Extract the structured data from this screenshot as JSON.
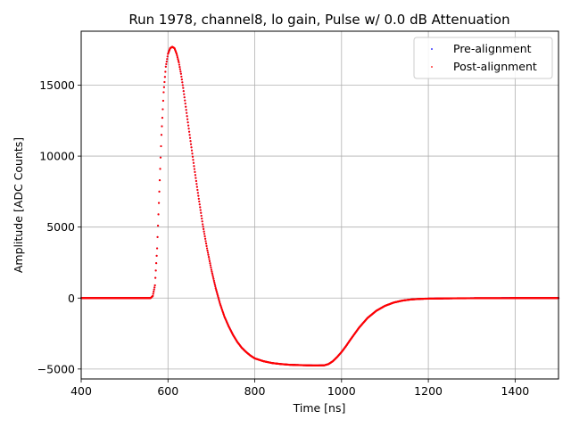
{
  "chart_data": {
    "type": "scatter",
    "title": "Run 1978, channel8, lo gain, Pulse w/ 0.0 dB Attenuation",
    "xlabel": "Time [ns]",
    "ylabel": "Amplitude [ADC Counts]",
    "xlim": [
      400,
      1500
    ],
    "ylim": [
      -5700,
      18800
    ],
    "xticks": [
      400,
      600,
      800,
      1000,
      1200,
      1400
    ],
    "yticks": [
      -5000,
      0,
      5000,
      10000,
      15000
    ],
    "ytick_labels": [
      "−5000",
      "0",
      "5000",
      "10000",
      "15000"
    ],
    "grid": true,
    "legend_position": "top-right",
    "series": [
      {
        "name": "Pre-alignment",
        "color": "#0000ff",
        "x": [
          400,
          500,
          560,
          565,
          570,
          575,
          580,
          585,
          590,
          595,
          600,
          605,
          610,
          615,
          620,
          625,
          630,
          635,
          640,
          650,
          660,
          670,
          680,
          690,
          700,
          710,
          720,
          730,
          740,
          750,
          760,
          770,
          780,
          790,
          800,
          820,
          840,
          860,
          880,
          900,
          920,
          940,
          960,
          970,
          980,
          990,
          1000,
          1010,
          1020,
          1040,
          1060,
          1080,
          1100,
          1120,
          1140,
          1160,
          1180,
          1200,
          1250,
          1300,
          1350,
          1400,
          1450,
          1500
        ],
        "values": [
          0,
          0,
          0,
          150,
          900,
          3500,
          7500,
          11500,
          14500,
          16300,
          17200,
          17600,
          17700,
          17600,
          17200,
          16600,
          15800,
          14800,
          13700,
          11500,
          9300,
          7200,
          5200,
          3500,
          2000,
          700,
          -400,
          -1300,
          -2000,
          -2600,
          -3100,
          -3500,
          -3800,
          -4050,
          -4250,
          -4450,
          -4580,
          -4650,
          -4700,
          -4720,
          -4740,
          -4750,
          -4740,
          -4650,
          -4450,
          -4150,
          -3800,
          -3400,
          -2950,
          -2100,
          -1400,
          -900,
          -550,
          -320,
          -180,
          -100,
          -60,
          -40,
          -20,
          -10,
          -5,
          0,
          0,
          0
        ]
      },
      {
        "name": "Post-alignment",
        "color": "#ff0000",
        "x": [
          400,
          500,
          560,
          565,
          570,
          575,
          580,
          585,
          590,
          595,
          600,
          605,
          610,
          615,
          620,
          625,
          630,
          635,
          640,
          650,
          660,
          670,
          680,
          690,
          700,
          710,
          720,
          730,
          740,
          750,
          760,
          770,
          780,
          790,
          800,
          820,
          840,
          860,
          880,
          900,
          920,
          940,
          960,
          970,
          980,
          990,
          1000,
          1010,
          1020,
          1040,
          1060,
          1080,
          1100,
          1120,
          1140,
          1160,
          1180,
          1200,
          1250,
          1300,
          1350,
          1400,
          1450,
          1500
        ],
        "values": [
          0,
          0,
          0,
          150,
          900,
          3500,
          7500,
          11500,
          14500,
          16300,
          17200,
          17600,
          17700,
          17600,
          17200,
          16600,
          15800,
          14800,
          13700,
          11500,
          9300,
          7200,
          5200,
          3500,
          2000,
          700,
          -400,
          -1300,
          -2000,
          -2600,
          -3100,
          -3500,
          -3800,
          -4050,
          -4250,
          -4450,
          -4580,
          -4650,
          -4700,
          -4720,
          -4740,
          -4750,
          -4740,
          -4650,
          -4450,
          -4150,
          -3800,
          -3400,
          -2950,
          -2100,
          -1400,
          -900,
          -550,
          -320,
          -180,
          -100,
          -60,
          -40,
          -20,
          -10,
          -5,
          0,
          0,
          0
        ]
      }
    ]
  }
}
